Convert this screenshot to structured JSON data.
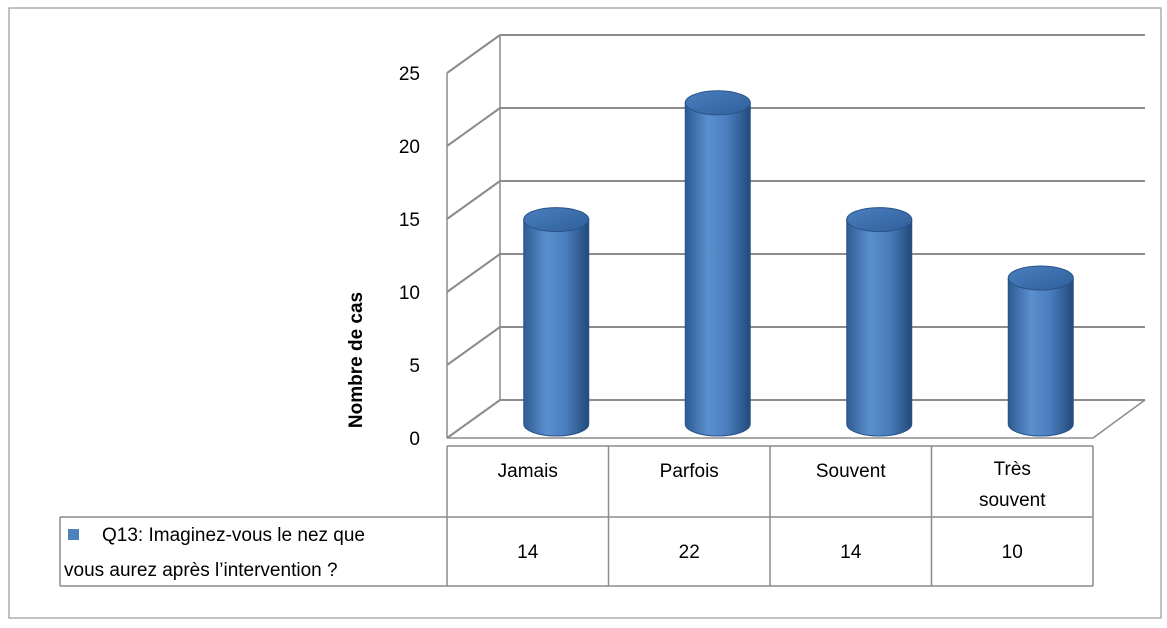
{
  "chart_data": {
    "type": "bar",
    "style": "3d-cylinder",
    "ylabel": "Nombre de cas",
    "ylim": [
      0,
      25
    ],
    "ytick_step": 5,
    "yticks": [
      "0",
      "5",
      "10",
      "15",
      "20",
      "25"
    ],
    "categories": [
      {
        "line1": "Jamais",
        "line2": ""
      },
      {
        "line1": "Parfois",
        "line2": ""
      },
      {
        "line1": "Souvent",
        "line2": ""
      },
      {
        "line1": "Très",
        "line2": "souvent"
      }
    ],
    "series": [
      {
        "name_line1": "Q13: Imaginez-vous le nez que",
        "name_line2": "vous aurez après l’intervention ?",
        "values": [
          14,
          22,
          14,
          10
        ],
        "value_labels": [
          "14",
          "22",
          "14",
          "10"
        ],
        "color": "#4F81BD"
      }
    ],
    "grid": true,
    "data_table": true,
    "legend_placement": "data-table-left"
  }
}
